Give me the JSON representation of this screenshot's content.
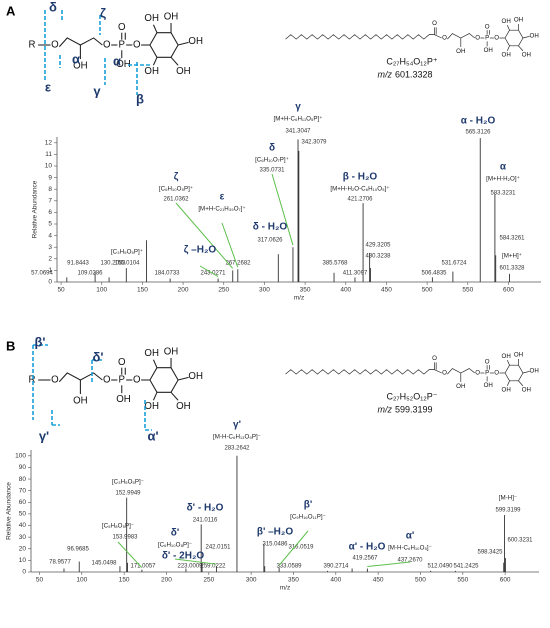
{
  "panels": [
    {
      "label": "A",
      "structure": {
        "atoms": [
          "R",
          "O",
          "OH",
          "O",
          "P",
          "O",
          "OH",
          "O",
          "OH",
          "OH",
          "OH",
          "OH",
          "OH"
        ],
        "fragments": [
          "δ",
          "ζ",
          "α",
          "α",
          "ε",
          "γ",
          "β"
        ]
      },
      "product": {
        "atoms": [
          "O",
          "O",
          "OH",
          "O",
          "P",
          "O",
          "OH",
          "O",
          "OH",
          "OH",
          "OH",
          "OH",
          "OH"
        ],
        "formula": "C₂₇H₅₄O₁₂P⁺",
        "mz_label": "m/z",
        "mz": "601.3328"
      }
    },
    {
      "label": "B",
      "structure": {
        "atoms": [
          "R",
          "O",
          "OH",
          "O",
          "P",
          "O",
          "OH",
          "O",
          "OH",
          "OH",
          "OH",
          "OH",
          "OH"
        ],
        "fragments": [
          "β'",
          "δ'",
          "γ'",
          "α'"
        ]
      },
      "product": {
        "atoms": [
          "O",
          "O",
          "OH",
          "O",
          "P",
          "O",
          "OH",
          "O",
          "OH",
          "OH",
          "OH",
          "OH",
          "OH"
        ],
        "formula": "C₂₇H₅₂O₁₂P⁻",
        "mz_label": "m/z",
        "mz": "599.3199"
      }
    }
  ],
  "chart_data": [
    {
      "type": "stem",
      "x_label": "m/z",
      "y_label": "Relative Abundance",
      "color": "#333333",
      "x": [
        57.0694,
        91.8443,
        109.0286,
        130.2053,
        155.0104,
        184.0733,
        243.0271,
        261.0362,
        267.2682,
        317.0626,
        335.0731,
        341.3047,
        342.3079,
        385.5768,
        411.3097,
        421.2706,
        429.3205,
        430.3238,
        506.4835,
        531.6724,
        565.3126,
        583.3231,
        584.3261,
        601.3328
      ],
      "x_labels": [
        "57.0694",
        "91.8443",
        "109.0286",
        "130.2053",
        "155.0104",
        "184.0733",
        "243.0271",
        "261.0362",
        "267.2682",
        "317.0626",
        "335.0731",
        "341.3047",
        "342.3079",
        "385.5768",
        "411.3097",
        "421.2706",
        "429.3205",
        "430.3238",
        "506.4835",
        "531.6724",
        "565.3126",
        "583.3231",
        "584.3261",
        "601.3328"
      ],
      "values": [
        0.4,
        0.9,
        0.4,
        1.2,
        3.6,
        0.3,
        0.3,
        1.0,
        1.1,
        2.4,
        3.0,
        12.3,
        11.3,
        0.8,
        0.4,
        6.8,
        2.5,
        1.2,
        0.4,
        0.9,
        12.4,
        7.6,
        2.3,
        0.7
      ],
      "xlim": [
        45,
        640
      ],
      "xticks": [
        50,
        100,
        150,
        200,
        250,
        300,
        350,
        400,
        450,
        500,
        550,
        600
      ],
      "ylim": [
        0,
        12.5
      ],
      "yticks": [
        0,
        1,
        2,
        3,
        4,
        5,
        6,
        7,
        8,
        9,
        10,
        11,
        12
      ],
      "annotations": [
        [
          "α - H₂O"
        ],
        [
          "α",
          "[M+H-H₂O]⁺"
        ],
        [
          "γ",
          "[M+H-C₆H₁₁O₅P]⁺"
        ],
        [
          "δ",
          "[C₆H₁₀O₇P]⁺"
        ],
        [
          "ζ",
          "[C₆H₁₀O₅P]⁺"
        ],
        [
          "ε",
          "[M+H-C₂₁H₃₉O₇]⁺"
        ],
        [
          "β - H₂O",
          "[M+H-H₂O-C₆H₁₀O₅]⁺"
        ],
        [
          "δ - H₂O"
        ],
        [
          "ζ –H₂O"
        ],
        [
          "[M+H]⁺"
        ],
        [
          "[C₃H₅O₅P]⁺"
        ]
      ]
    },
    {
      "type": "stem",
      "x_label": "m/z",
      "y_label": "Relative Abundance",
      "color": "#333333",
      "x": [
        78.9577,
        96.9685,
        145.0498,
        152.9949,
        153.9983,
        171.0057,
        223.0009,
        241.0116,
        242.0151,
        259.0222,
        283.2642,
        315.0486,
        316.0519,
        333.0589,
        390.2714,
        419.2567,
        437.267,
        512.049,
        541.2425,
        598.3425,
        599.3199,
        600.3231
      ],
      "x_labels": [
        "78.9577",
        "96.9685",
        "145.0498",
        "152.9949",
        "153.9983",
        "171.0057",
        "223.0009",
        "241.0116",
        "242.0151",
        "259.0222",
        "283.2642",
        "315.0486",
        "316.0519",
        "333.0589",
        "390.2714",
        "419.2567",
        "437.2670",
        "512.0490",
        "541.2425",
        "598.3425",
        "599.3199",
        "600.3231"
      ],
      "values": [
        3,
        9,
        5,
        64,
        8,
        2,
        3,
        41,
        7,
        5,
        100,
        24,
        5,
        4,
        1,
        3,
        3,
        1,
        1,
        8,
        49,
        12
      ],
      "xlim": [
        40,
        640
      ],
      "xticks": [
        50,
        100,
        150,
        200,
        250,
        300,
        350,
        400,
        450,
        500,
        550,
        600
      ],
      "ylim": [
        0,
        105
      ],
      "yticks": [
        0,
        10,
        20,
        30,
        40,
        50,
        60,
        70,
        80,
        90,
        100
      ],
      "annotations": [
        [
          "γ'",
          "[M-H-C₆H₁₃O₉P]⁻"
        ],
        [
          "[C₃H₅O₅P]⁻"
        ],
        [
          "δ' - H₂O"
        ],
        [
          "δ'",
          "[C₆H₁₀O₈P]⁻"
        ],
        [
          "[C₅H₈O₅P]⁻"
        ],
        [
          "δ' - 2H₂O"
        ],
        [
          "β' –H₂O"
        ],
        [
          "β'",
          "[C₉H₁₆O₁₁P]⁻"
        ],
        [
          "α' - H₂O"
        ],
        [
          "α'",
          "[M-H-C₆H₁₀O₅]⁻"
        ],
        [
          "[M-H]⁻"
        ]
      ]
    }
  ]
}
